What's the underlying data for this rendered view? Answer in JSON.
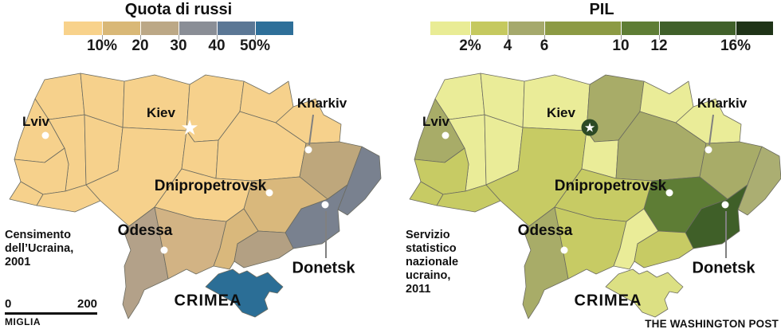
{
  "cities": {
    "lviv": "Lviv",
    "kiev": "Kiev",
    "kharkiv": "Kharkiv",
    "dnipropetrovsk": "Dnipropetrovsk",
    "odessa": "Odessa",
    "donetsk": "Donetsk",
    "crimea": "CRIMEA"
  },
  "left": {
    "legend": {
      "title": "Quota di russi",
      "labels": [
        "10%",
        "20",
        "30",
        "40",
        "50%"
      ],
      "swatches": [
        "#F8D28B",
        "#D9B877",
        "#BCA886",
        "#8A8E96",
        "#5B7795",
        "#2E6F99"
      ]
    },
    "caption_lines": [
      "Censimento",
      "dell’Ucraina,",
      "2001"
    ],
    "scalebar": {
      "start": "0",
      "end": "200",
      "unit": "MIGLIA"
    },
    "regions": {
      "volyn": "#F6D18C",
      "rivne": "#F6D18C",
      "zhytomyr": "#F6D18C",
      "kyiv": "#F6D18C",
      "chernihiv": "#F6D18C",
      "sumy": "#F6D18C",
      "lviv": "#F6D18C",
      "ternopil": "#F6D18C",
      "khmelnytskyi": "#F6D18C",
      "ivanofrankivsk": "#F6D18C",
      "zakarpattia": "#F6D18C",
      "chernivtsi": "#F6D18C",
      "vinnytsia": "#F6D18C",
      "cherkasy": "#F6D18C",
      "poltava": "#F6D18C",
      "kirovohrad": "#F6D18C",
      "dnipropetrovsk": "#D9B87C",
      "kherson": "#D9B87C",
      "mykolaiv": "#D2B384",
      "kharkiv": "#BEA77C",
      "odessa": "#B3A189",
      "zaporizhzhia": "#B3A083",
      "donetsk": "#79818F",
      "luhansk": "#79818F",
      "crimea": "#2B6E96"
    }
  },
  "right": {
    "legend": {
      "title": "PIL",
      "labels": [
        "2%",
        "4",
        "6",
        "10",
        "12",
        "16%"
      ],
      "swatches": [
        "#E9EC95",
        "#C5C95F",
        "#A5A96C",
        "#8C9A44",
        "#5E7D35",
        "#40602A",
        "#1F3317"
      ]
    },
    "caption_lines": [
      "Servizio",
      "statistico",
      "nazionale",
      "ucraino,",
      "2011"
    ],
    "credit": "THE WASHINGTON POST",
    "kiev_circle_color": "#2C4A25",
    "regions": {
      "volyn": "#EAEC98",
      "rivne": "#EAEC98",
      "zhytomyr": "#EAEC98",
      "chernihiv": "#EAEC98",
      "sumy": "#EAEC98",
      "ternopil": "#EAEC98",
      "khmelnytskyi": "#EAEC98",
      "cherkasy": "#EAEC98",
      "kherson": "#EAEC98",
      "ivanofrankivsk": "#C7CB64",
      "chernivtsi": "#C7CB64",
      "vinnytsia": "#C7CB64",
      "zakarpattia": "#C7CB64",
      "mykolaiv": "#C7CB64",
      "zaporizhzhia": "#C7CB64",
      "kirovohrad": "#C7CB64",
      "lviv": "#A8AC68",
      "kyiv": "#A8AC68",
      "poltava": "#A8AC68",
      "kharkiv": "#A8AC68",
      "odessa": "#A8AC68",
      "luhansk": "#ABAE72",
      "dnipropetrovsk": "#5E7D35",
      "donetsk": "#3F5F28",
      "crimea": "#DCE083"
    }
  }
}
